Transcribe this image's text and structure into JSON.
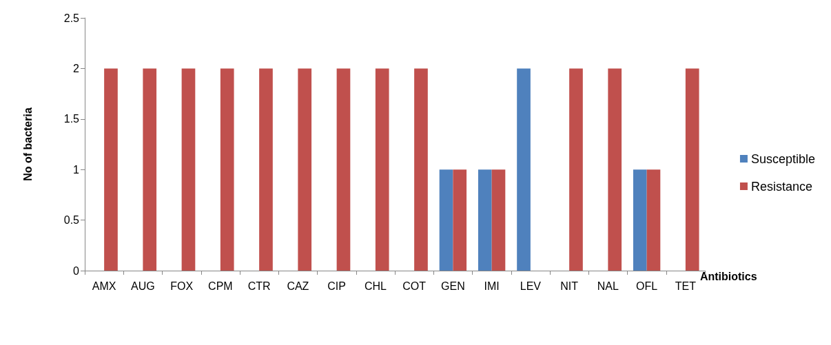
{
  "chart_data": {
    "type": "bar",
    "xlabel": "Antibiotics",
    "ylabel": "No of bacteria",
    "categories": [
      "AMX",
      "AUG",
      "FOX",
      "CPM",
      "CTR",
      "CAZ",
      "CIP",
      "CHL",
      "COT",
      "GEN",
      "IMI",
      "LEV",
      "NIT",
      "NAL",
      "OFL",
      "TET"
    ],
    "series": [
      {
        "name": "Susceptible",
        "color": "#4f81bd",
        "values": [
          0,
          0,
          0,
          0,
          0,
          0,
          0,
          0,
          0,
          1,
          1,
          2,
          0,
          0,
          1,
          0
        ]
      },
      {
        "name": "Resistance",
        "color": "#c0504d",
        "values": [
          2,
          2,
          2,
          2,
          2,
          2,
          2,
          2,
          2,
          1,
          1,
          0,
          2,
          2,
          1,
          2
        ]
      }
    ],
    "ylim": [
      0,
      2.5
    ],
    "yticks": [
      0,
      0.5,
      1,
      1.5,
      2,
      2.5
    ],
    "grid": false,
    "legend": "right"
  }
}
